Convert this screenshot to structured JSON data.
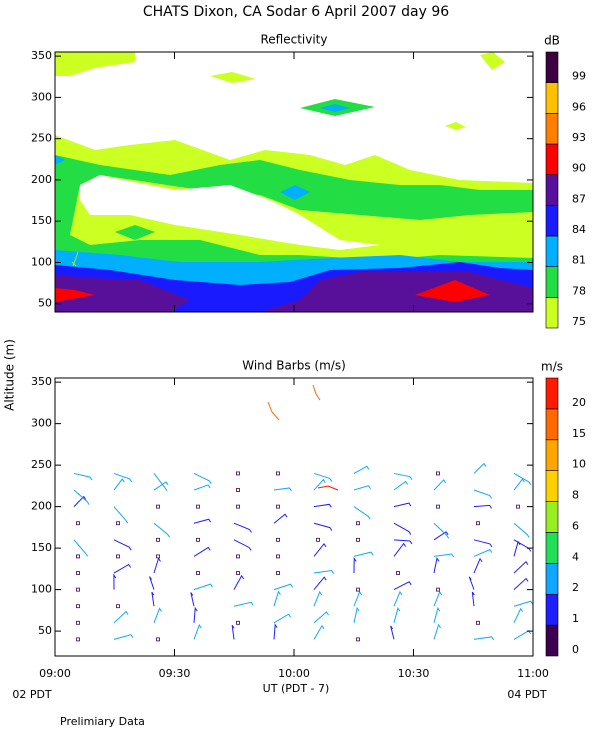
{
  "title": "CHATS Dixon, CA  Sodar    6 April 2007   day  96",
  "ylabel": "Altitude (m)",
  "xlabel": "UT  (PDT - 7)",
  "x_start_label": "02 PDT",
  "x_end_label": "04 PDT",
  "note": "Prelimiary Data",
  "chart_data": [
    {
      "type": "contour",
      "title": "Reflectivity",
      "xlim": [
        9,
        11
      ],
      "xticks": [
        9,
        9.5,
        10,
        10.5,
        11
      ],
      "ylim": [
        40,
        355
      ],
      "yticks": [
        50,
        100,
        150,
        200,
        250,
        300,
        350
      ],
      "colorbar": {
        "label": "dB",
        "levels": [
          75,
          78,
          81,
          84,
          87,
          90,
          93,
          96,
          99
        ],
        "colors": [
          "#ccff22",
          "#22dd44",
          "#00b0ff",
          "#1a1aff",
          "#58109a",
          "#ff0000",
          "#ff8000",
          "#ffc000",
          "#3c0040"
        ]
      }
    },
    {
      "type": "barbs",
      "title": "Wind Barbs (m/s)",
      "xlim": [
        9,
        11
      ],
      "xticks": [
        {
          "value": 9,
          "label": "09:00"
        },
        {
          "value": 9.5,
          "label": "09:30"
        },
        {
          "value": 10,
          "label": "10:00"
        },
        {
          "value": 10.5,
          "label": "10:30"
        },
        {
          "value": 11,
          "label": "11:00"
        }
      ],
      "ylim": [
        20,
        355
      ],
      "yticks": [
        50,
        100,
        150,
        200,
        250,
        300,
        350
      ],
      "colorbar": {
        "label": "m/s",
        "levels": [
          0,
          1,
          2,
          4,
          6,
          8,
          10,
          15,
          20
        ],
        "colors": [
          "#3c0050",
          "#1e1eff",
          "#10a8ff",
          "#22dd55",
          "#99ee22",
          "#ffd000",
          "#ffa500",
          "#ff6a00",
          "#ff1a00"
        ]
      }
    }
  ]
}
